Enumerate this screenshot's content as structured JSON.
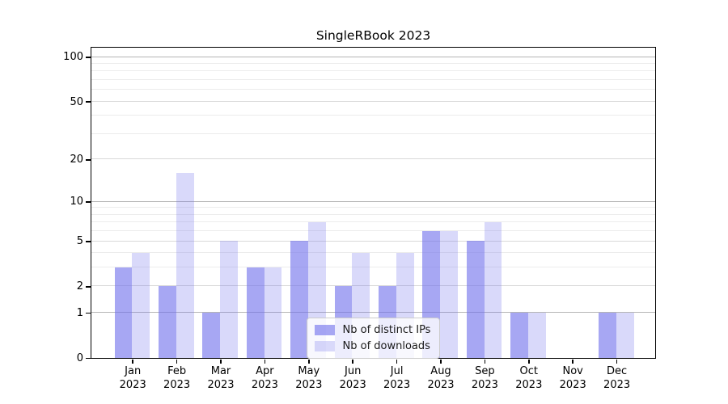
{
  "chart_data": {
    "type": "bar",
    "title": "SingleRBook 2023",
    "y_scale": "log1p",
    "grid": true,
    "x_year": "2023",
    "categories": [
      "Jan",
      "Feb",
      "Mar",
      "Apr",
      "May",
      "Jun",
      "Jul",
      "Aug",
      "Sep",
      "Oct",
      "Nov",
      "Dec"
    ],
    "series": [
      {
        "name": "Nb of distinct IPs",
        "color": "#a7a7f3",
        "fill": "rgba(113,113,236,0.62)",
        "values": [
          3,
          2,
          1,
          3,
          5,
          2,
          2,
          6,
          5,
          1,
          0,
          1
        ]
      },
      {
        "name": "Nb of downloads",
        "color": "#d9d9f8",
        "fill": "rgba(113,113,236,0.27)",
        "values": [
          4,
          16,
          5,
          3,
          7,
          4,
          4,
          6,
          7,
          1,
          0,
          1
        ]
      }
    ],
    "yticks": [
      0,
      1,
      2,
      5,
      10,
      20,
      50,
      100
    ],
    "ylim": [
      0,
      115.5
    ],
    "xlabel": "",
    "ylabel": "",
    "legend_position": "lower center"
  },
  "colors": {
    "background": "#ffffff",
    "spine": "#000000",
    "grid_major": "#b5b5b5",
    "grid_mid": "#d9d9d9",
    "grid_minor": "#ececec",
    "text": "#000000"
  }
}
